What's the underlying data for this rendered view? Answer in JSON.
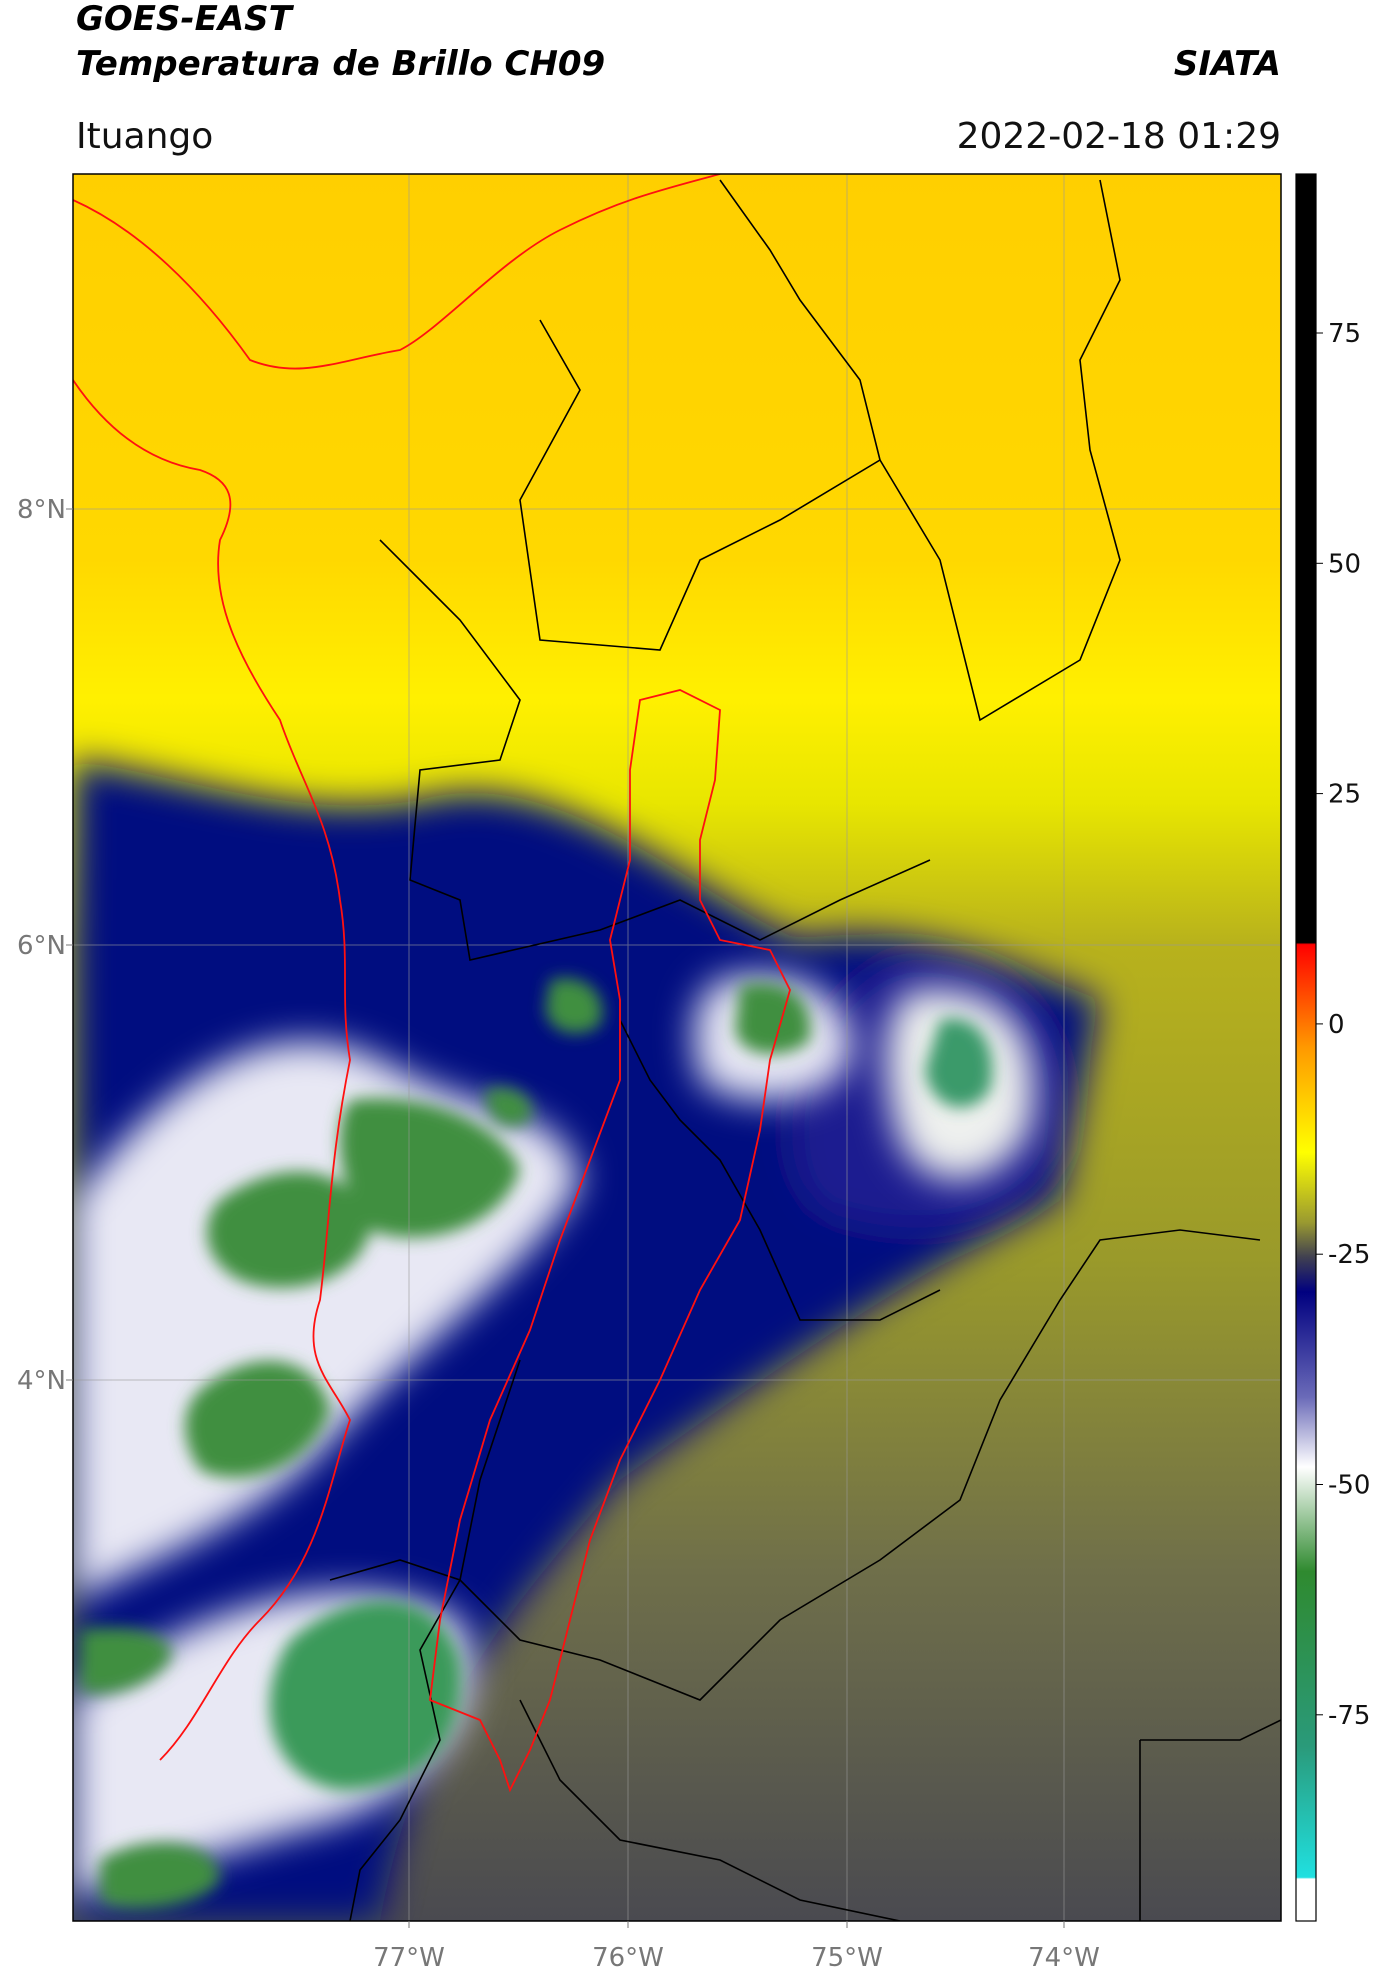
{
  "header": {
    "title_line1": "GOES-EAST",
    "title_line2": "Temperatura de Brillo CH09",
    "source": "SIATA",
    "location": "Ituango",
    "datetime": "2022-02-18 01:29"
  },
  "map": {
    "lat_ticks": [
      "8°N",
      "6°N",
      "4°N"
    ],
    "lon_ticks": [
      "77°W",
      "76°W",
      "75°W",
      "74°W"
    ]
  },
  "colorbar": {
    "ticks": [
      75,
      50,
      25,
      0,
      -25,
      -50,
      -75
    ]
  }
}
